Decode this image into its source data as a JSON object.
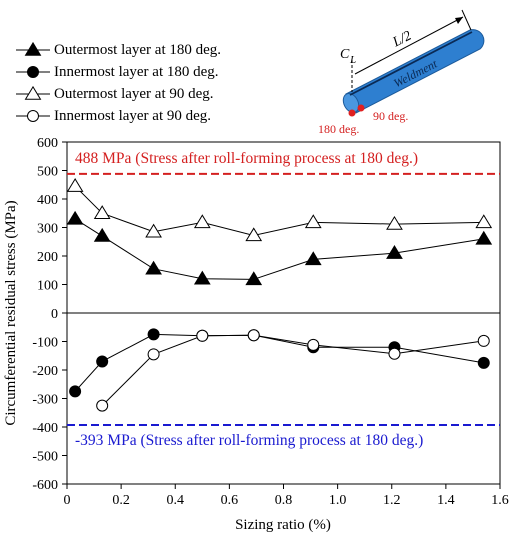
{
  "chart_data": {
    "type": "line",
    "xlabel": "Sizing ratio (%)",
    "ylabel": "Circumferential residual stress (MPa)",
    "xlim": [
      0,
      1.6
    ],
    "ylim": [
      -600,
      600
    ],
    "xticks": [
      0,
      0.2,
      0.4,
      0.6,
      0.8,
      1.0,
      1.2,
      1.4,
      1.6
    ],
    "xtick_labels": [
      "0",
      "0.2",
      "0.4",
      "0.6",
      "0.8",
      "1.0",
      "1.2",
      "1.4",
      "1.6"
    ],
    "yticks": [
      -600,
      -500,
      -400,
      -300,
      -200,
      -100,
      0,
      100,
      200,
      300,
      400,
      500,
      600
    ],
    "grid": false,
    "legend_position": "top-left",
    "series": [
      {
        "name": "Outermost layer at 180 deg.",
        "marker": "triangle",
        "filled": true,
        "x": [
          0.03,
          0.13,
          0.32,
          0.5,
          0.69,
          0.91,
          1.21,
          1.54
        ],
        "y": [
          330,
          270,
          155,
          120,
          118,
          188,
          210,
          260
        ]
      },
      {
        "name": "Innermost layer at 180 deg.",
        "marker": "circle",
        "filled": true,
        "x": [
          0.03,
          0.13,
          0.32,
          0.5,
          0.69,
          0.91,
          1.21,
          1.54
        ],
        "y": [
          -275,
          -170,
          -75,
          -80,
          -78,
          -120,
          -120,
          -175
        ]
      },
      {
        "name": "Outermost layer at 90 deg.",
        "marker": "triangle",
        "filled": false,
        "x": [
          0.03,
          0.13,
          0.32,
          0.5,
          0.69,
          0.91,
          1.21,
          1.54
        ],
        "y": [
          445,
          350,
          285,
          318,
          272,
          318,
          312,
          318
        ]
      },
      {
        "name": "Innermost layer at 90 deg.",
        "marker": "circle",
        "filled": false,
        "x": [
          0.13,
          0.32,
          0.5,
          0.69,
          0.91,
          1.21,
          1.54
        ],
        "y": [
          -325,
          -145,
          -80,
          -78,
          -112,
          -143,
          -98
        ]
      }
    ],
    "reference_lines": [
      {
        "y": 488,
        "color": "#d42020",
        "style": "dashed",
        "label": "488 MPa (Stress after roll-forming process at 180 deg.)"
      },
      {
        "y": -393,
        "color": "#1a1ad0",
        "style": "dashed",
        "label": "-393 MPa (Stress after roll-forming process at 180 deg.)"
      }
    ]
  },
  "diagram": {
    "dimension_label": "L/2",
    "centerline_label": "C",
    "centerline_sub": "L",
    "weldment_label": "Weldment",
    "point_180_label": "180 deg.",
    "point_90_label": "90 deg.",
    "pipe_color": "#2e7fd0",
    "point_color": "#e02020"
  }
}
